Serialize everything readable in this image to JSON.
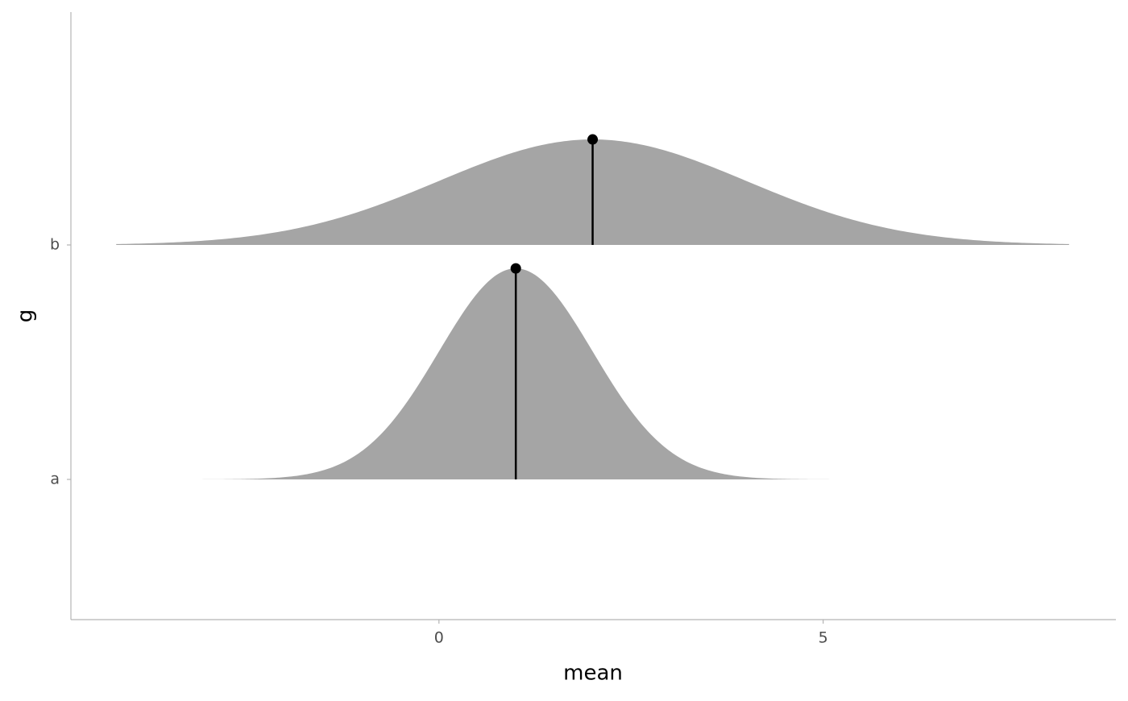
{
  "chart_data": {
    "type": "halfeye",
    "x_label": "mean",
    "y_label": "g",
    "categories": [
      "a",
      "b"
    ],
    "mean": [
      1,
      2
    ],
    "sd": [
      1,
      2
    ],
    "slab_range": [
      [
        -3.2,
        5.2
      ],
      [
        -4.2,
        8.2
      ]
    ],
    "slab_color": "#a5a5a5",
    "point_color": "#000000",
    "xlim": [
      -4.79,
      8.81
    ],
    "xticks": [
      0,
      5
    ]
  }
}
